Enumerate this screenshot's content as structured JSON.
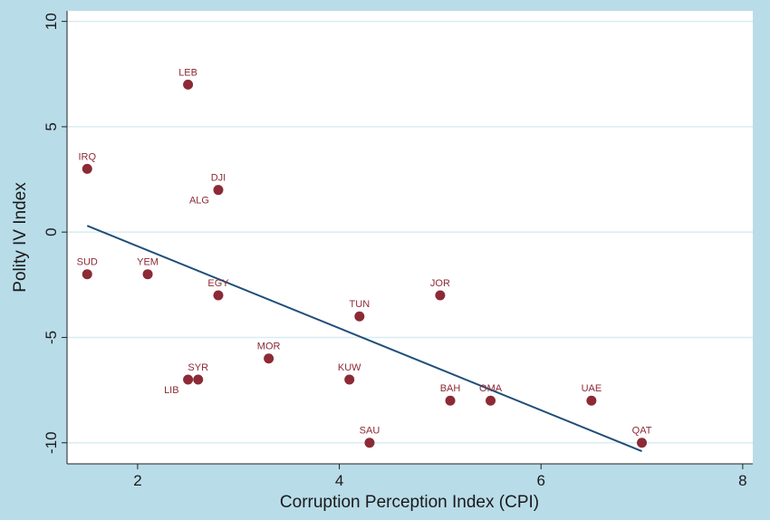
{
  "chart_data": {
    "type": "scatter",
    "title": "",
    "xlabel": "Corruption Perception Index (CPI)",
    "ylabel": "Polity IV Index",
    "xlim": [
      1.3,
      8.1
    ],
    "ylim": [
      -11,
      10.5
    ],
    "xticks": [
      2,
      4,
      6,
      8
    ],
    "yticks": [
      -10,
      -5,
      0,
      5,
      10
    ],
    "grid": "horizontal",
    "legend": "none",
    "colors": {
      "background": "#b9dce9",
      "plot_area": "#ffffff",
      "gridline": "#d9ecf3",
      "marker": "#8c2a35",
      "label": "#8c2a35",
      "fit_line": "#1f4e79"
    },
    "points": [
      {
        "label": "LEB",
        "x": 2.5,
        "y": 7,
        "pos": "above"
      },
      {
        "label": "IRQ",
        "x": 1.5,
        "y": 3,
        "pos": "above"
      },
      {
        "label": "DJI",
        "x": 2.8,
        "y": 2,
        "pos": "above"
      },
      {
        "label": "ALG",
        "x": 2.8,
        "y": 2,
        "pos": "below-left"
      },
      {
        "label": "SUD",
        "x": 1.5,
        "y": -2,
        "pos": "above"
      },
      {
        "label": "YEM",
        "x": 2.1,
        "y": -2,
        "pos": "above"
      },
      {
        "label": "EGY",
        "x": 2.8,
        "y": -3,
        "pos": "above"
      },
      {
        "label": "JOR",
        "x": 5.0,
        "y": -3,
        "pos": "above"
      },
      {
        "label": "TUN",
        "x": 4.2,
        "y": -4,
        "pos": "above"
      },
      {
        "label": "MOR",
        "x": 3.3,
        "y": -6,
        "pos": "above"
      },
      {
        "label": "SYR",
        "x": 2.6,
        "y": -7,
        "pos": "above"
      },
      {
        "label": "LIB",
        "x": 2.5,
        "y": -7,
        "pos": "below-left"
      },
      {
        "label": "KUW",
        "x": 4.1,
        "y": -7,
        "pos": "above"
      },
      {
        "label": "BAH",
        "x": 5.1,
        "y": -8,
        "pos": "above"
      },
      {
        "label": "OMA",
        "x": 5.5,
        "y": -8,
        "pos": "above"
      },
      {
        "label": "UAE",
        "x": 6.5,
        "y": -8,
        "pos": "above"
      },
      {
        "label": "SAU",
        "x": 4.3,
        "y": -10,
        "pos": "above"
      },
      {
        "label": "QAT",
        "x": 7.0,
        "y": -10,
        "pos": "above"
      }
    ],
    "fit_line": {
      "x": [
        1.5,
        7.0
      ],
      "y": [
        0.3,
        -10.4
      ]
    }
  }
}
